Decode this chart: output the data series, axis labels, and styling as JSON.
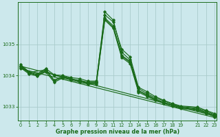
{
  "bg_color": "#cce8ec",
  "grid_color": "#aacccc",
  "line_color": "#1a6b1a",
  "xlabel": "Graphe pression niveau de la mer (hPa)",
  "xlabel_color": "#1a6b1a",
  "tick_color": "#1a6b1a",
  "ylim": [
    1032.55,
    1036.35
  ],
  "xlim": [
    -0.3,
    23.3
  ],
  "yticks": [
    1033,
    1034,
    1035
  ],
  "xticks": [
    0,
    1,
    2,
    3,
    4,
    5,
    6,
    7,
    8,
    9,
    10,
    11,
    12,
    13,
    14,
    15,
    16,
    17,
    18,
    19,
    21,
    22,
    23
  ],
  "series": [
    {
      "x": [
        0,
        1,
        2,
        3,
        4,
        5,
        6,
        7,
        8,
        9,
        10,
        11,
        12,
        13,
        14,
        15,
        16,
        17,
        18,
        19,
        21,
        22,
        23
      ],
      "y": [
        1034.35,
        1034.12,
        1034.05,
        1034.22,
        1034.02,
        1034.0,
        1033.93,
        1033.9,
        1033.82,
        1033.82,
        1035.95,
        1035.72,
        1034.85,
        1034.6,
        1033.62,
        1033.48,
        1033.32,
        1033.2,
        1033.1,
        1033.02,
        1032.98,
        1032.88,
        1032.78
      ]
    },
    {
      "x": [
        0,
        1,
        2,
        3,
        4,
        5,
        6,
        7,
        8,
        9,
        10,
        11,
        12,
        13,
        14,
        15,
        16,
        17,
        18,
        19,
        21,
        22,
        23
      ],
      "y": [
        1034.32,
        1034.1,
        1034.02,
        1034.18,
        1033.85,
        1033.98,
        1033.9,
        1033.82,
        1033.78,
        1033.78,
        1036.05,
        1035.78,
        1034.75,
        1034.5,
        1033.58,
        1033.42,
        1033.28,
        1033.18,
        1033.08,
        1033.0,
        1032.95,
        1032.85,
        1032.75
      ]
    },
    {
      "x": [
        0,
        1,
        2,
        3,
        4,
        5,
        6,
        7,
        8,
        9,
        10,
        11,
        12,
        13,
        14,
        15,
        16,
        17,
        18,
        19,
        21,
        22,
        23
      ],
      "y": [
        1034.28,
        1034.08,
        1034.0,
        1034.15,
        1034.0,
        1033.95,
        1033.88,
        1033.85,
        1033.78,
        1033.78,
        1035.85,
        1035.6,
        1034.65,
        1034.45,
        1033.52,
        1033.38,
        1033.24,
        1033.14,
        1033.05,
        1032.98,
        1032.92,
        1032.82,
        1032.72
      ]
    },
    {
      "x": [
        0,
        1,
        2,
        3,
        4,
        5,
        6,
        7,
        8,
        9,
        10,
        11,
        12,
        13,
        14,
        15,
        16,
        17,
        18,
        19,
        21,
        22,
        23
      ],
      "y": [
        1034.25,
        1034.05,
        1033.98,
        1034.12,
        1033.78,
        1033.92,
        1033.85,
        1033.78,
        1033.72,
        1033.72,
        1035.78,
        1035.52,
        1034.58,
        1034.38,
        1033.46,
        1033.33,
        1033.2,
        1033.1,
        1033.02,
        1032.94,
        1032.88,
        1032.78,
        1032.68
      ]
    },
    {
      "x": [
        0,
        23
      ],
      "y": [
        1034.3,
        1032.7
      ]
    },
    {
      "x": [
        0,
        23
      ],
      "y": [
        1034.22,
        1032.65
      ]
    },
    {
      "x": [
        0,
        1,
        3,
        4,
        5,
        6,
        7,
        8,
        9,
        10,
        11,
        12,
        13,
        14,
        15,
        16,
        17,
        18,
        19,
        21,
        22,
        23
      ],
      "y": [
        1034.3,
        1034.1,
        1034.18,
        1033.82,
        1033.95,
        1033.88,
        1033.82,
        1033.75,
        1033.75,
        1035.82,
        1035.55,
        1034.62,
        1034.42,
        1033.5,
        1033.36,
        1033.22,
        1033.12,
        1033.04,
        1032.96,
        1032.9,
        1032.8,
        1032.7
      ]
    }
  ]
}
